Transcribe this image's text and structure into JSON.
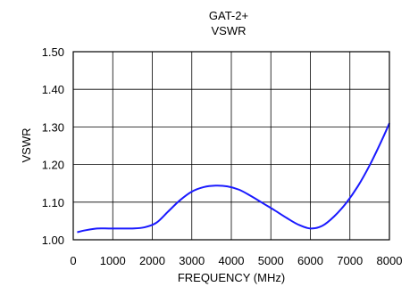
{
  "chart_data": {
    "type": "line",
    "title": "GAT-2+",
    "subtitle": "VSWR",
    "xlabel": "FREQUENCY (MHz)",
    "ylabel": "VSWR",
    "xlim": [
      0,
      8000
    ],
    "ylim": [
      1.0,
      1.5
    ],
    "xticks": [
      0,
      1000,
      2000,
      3000,
      4000,
      5000,
      6000,
      7000,
      8000
    ],
    "xtick_labels": [
      "0",
      "1000",
      "2000",
      "3000",
      "4000",
      "5000",
      "6000",
      "7000",
      "8000"
    ],
    "yticks": [
      1.0,
      1.1,
      1.2,
      1.3,
      1.4,
      1.5
    ],
    "ytick_labels": [
      "1.00",
      "1.10",
      "1.20",
      "1.30",
      "1.40",
      "1.50"
    ],
    "grid": true,
    "legend": "none",
    "series": [
      {
        "color": "#1a1aff",
        "x": [
          100,
          300,
          600,
          900,
          1200,
          1500,
          1800,
          2100,
          2400,
          2700,
          3000,
          3300,
          3600,
          3900,
          4200,
          4500,
          4800,
          5100,
          5400,
          5700,
          6000,
          6300,
          6600,
          6900,
          7200,
          7500,
          7800,
          8000
        ],
        "y": [
          1.02,
          1.025,
          1.03,
          1.03,
          1.03,
          1.03,
          1.033,
          1.045,
          1.075,
          1.105,
          1.128,
          1.14,
          1.144,
          1.142,
          1.133,
          1.116,
          1.097,
          1.078,
          1.058,
          1.04,
          1.03,
          1.037,
          1.062,
          1.097,
          1.142,
          1.198,
          1.263,
          1.31
        ]
      }
    ]
  }
}
